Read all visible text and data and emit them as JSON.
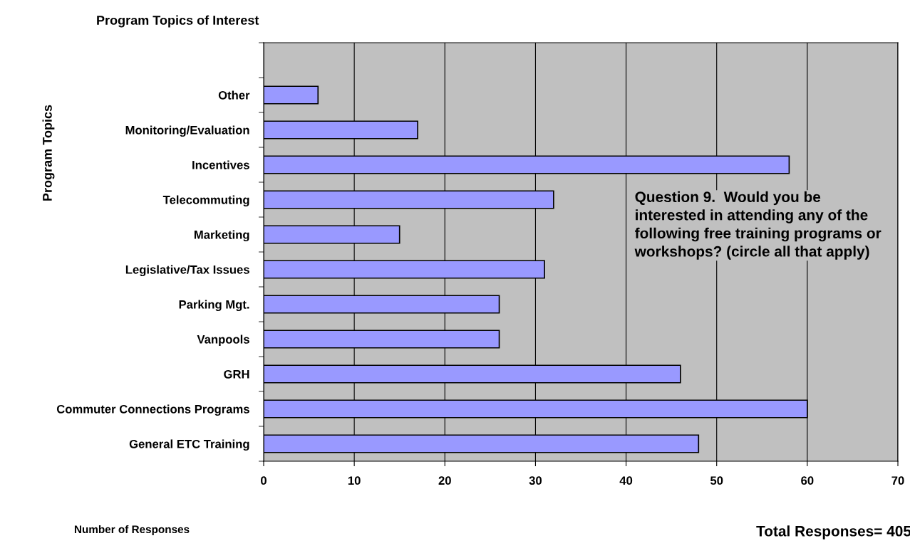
{
  "chart_data": {
    "type": "bar",
    "orientation": "horizontal",
    "title": "Program Topics of Interest",
    "xlabel": "Number of Responses",
    "ylabel": "Program Topics",
    "categories": [
      null,
      "Other",
      "Monitoring/Evaluation",
      "Incentives",
      "Telecommuting",
      "Marketing",
      "Legislative/Tax Issues",
      "Parking Mgt.",
      "Vanpools",
      "GRH",
      "Commuter Connections Programs",
      "General ETC Training"
    ],
    "values": [
      null,
      6,
      17,
      58,
      32,
      15,
      31,
      26,
      26,
      46,
      60,
      48
    ],
    "color": "#9999ff",
    "xlim": [
      0,
      70
    ],
    "xticks": [
      0,
      10,
      20,
      30,
      40,
      50,
      60,
      70
    ],
    "grid": "x",
    "legend": false,
    "annotations": [
      "Question 9.  Would you be interested in attending any of the following free training programs or workshops? (circle all that apply)",
      "Total Responses= 405"
    ]
  }
}
